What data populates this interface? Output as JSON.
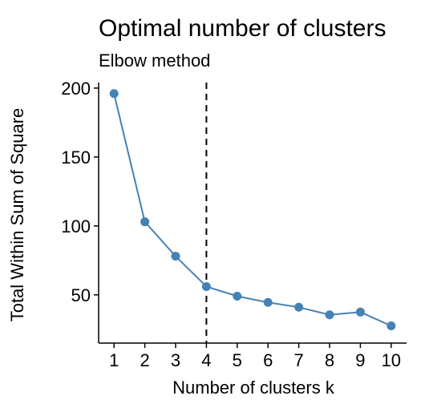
{
  "chart_data": {
    "type": "line",
    "title": "Optimal number of clusters",
    "subtitle": "Elbow method",
    "xlabel": "Number of clusters k",
    "ylabel": "Total Within Sum of Square",
    "x": [
      1,
      2,
      3,
      4,
      5,
      6,
      7,
      8,
      9,
      10
    ],
    "series": [
      {
        "values": [
          196,
          103,
          78,
          56,
          49,
          44.5,
          41,
          35.5,
          37.5,
          27.5
        ]
      }
    ],
    "x_ticks": [
      "1",
      "2",
      "3",
      "4",
      "5",
      "6",
      "7",
      "8",
      "9",
      "10"
    ],
    "y_ticks": [
      50,
      100,
      150,
      200
    ],
    "xlim": [
      0.5,
      10.5
    ],
    "ylim": [
      15,
      204
    ],
    "reference_line": {
      "x": 4,
      "style": "dashed"
    },
    "grid": false,
    "legend": "none",
    "colors": {
      "series": "#4682B4",
      "reference_line": "#000000",
      "axis": "#000000"
    }
  }
}
